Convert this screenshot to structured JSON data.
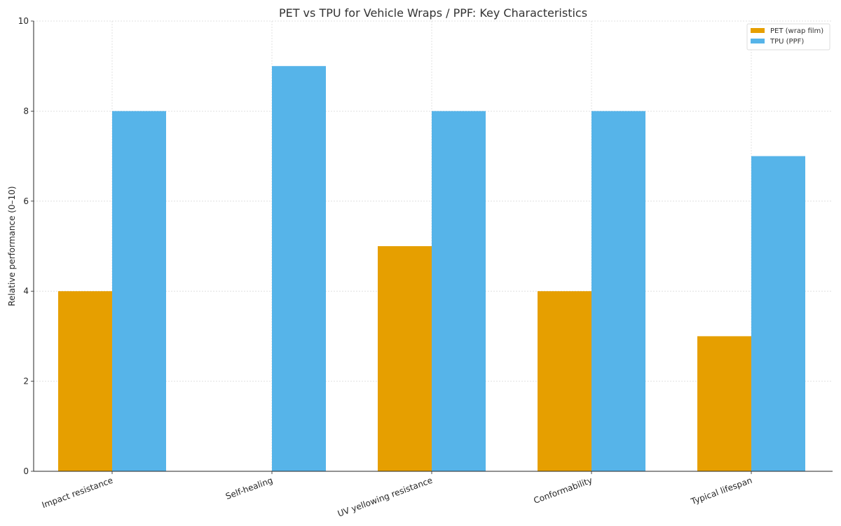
{
  "chart_data": {
    "type": "bar",
    "title": "PET vs TPU for Vehicle Wraps / PPF: Key Characteristics",
    "xlabel": "",
    "ylabel": "Relative performance (0–10)",
    "ylim": [
      0,
      10
    ],
    "yticks": [
      0,
      2,
      4,
      6,
      8,
      10
    ],
    "grid": true,
    "legend_position": "upper right",
    "categories": [
      "Impact resistance",
      "Self-healing",
      "UV yellowing resistance",
      "Conformability",
      "Typical lifespan"
    ],
    "series": [
      {
        "name": "PET (wrap film)",
        "color": "#E69F00",
        "values": [
          4,
          0,
          5,
          4,
          3
        ]
      },
      {
        "name": "TPU (PPF)",
        "color": "#56B4E9",
        "values": [
          8,
          9,
          8,
          8,
          7
        ]
      }
    ]
  }
}
